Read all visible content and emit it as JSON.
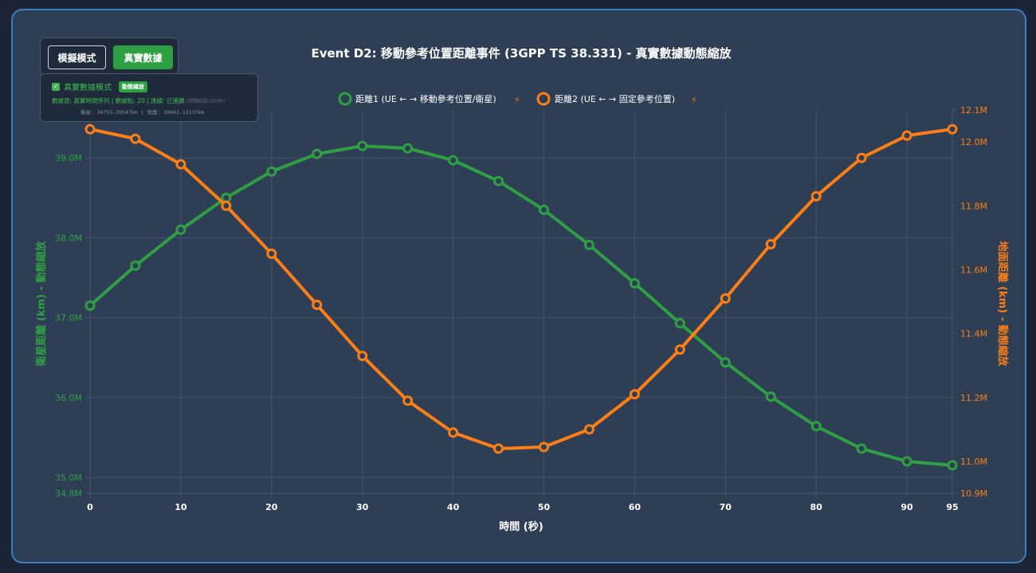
{
  "mode_buttons": {
    "simulation_label": "模擬模式",
    "real_label": "真實數據"
  },
  "info": {
    "checkbox_label": "真實數據模式",
    "badge": "動態縮放",
    "source_line": "數據源: 真實時間序列 | 數據點: 20 | 連線: 已連續",
    "source_note": "(時間範圍:100秒)",
    "range_line": "衛星: 34755-39547km | 地面: 10942-12137km"
  },
  "chart_data": {
    "type": "line",
    "title": "Event D2: 移動參考位置距離事件 (3GPP TS 38.331) - 真實數據動態縮放",
    "xlabel": "時間 (秒)",
    "y_left_label": "衛星距離 (km) - 動態縮放",
    "y_right_label": "地面距離 (km) - 動態縮放",
    "x": [
      0,
      5,
      10,
      15,
      20,
      25,
      30,
      35,
      40,
      45,
      50,
      55,
      60,
      65,
      70,
      75,
      80,
      85,
      90,
      95
    ],
    "xlim": [
      0,
      95
    ],
    "x_ticks": [
      0,
      10,
      20,
      30,
      40,
      50,
      60,
      70,
      80,
      90,
      95
    ],
    "y_left_lim": [
      34.8,
      39.6
    ],
    "y_left_ticks": [
      {
        "v": 34.8,
        "label": "34.8M"
      },
      {
        "v": 35.0,
        "label": "35.0M"
      },
      {
        "v": 36.0,
        "label": "36.0M"
      },
      {
        "v": 37.0,
        "label": "37.0M"
      },
      {
        "v": 38.0,
        "label": "38.0M"
      },
      {
        "v": 39.0,
        "label": "39.0M"
      }
    ],
    "y_right_lim": [
      10.9,
      12.1
    ],
    "y_right_ticks": [
      {
        "v": 10.9,
        "label": "10.9M"
      },
      {
        "v": 11.0,
        "label": "11.0M"
      },
      {
        "v": 11.2,
        "label": "11.2M"
      },
      {
        "v": 11.4,
        "label": "11.4M"
      },
      {
        "v": 11.6,
        "label": "11.6M"
      },
      {
        "v": 11.8,
        "label": "11.8M"
      },
      {
        "v": 12.0,
        "label": "12.0M"
      },
      {
        "v": 12.1,
        "label": "12.1M"
      }
    ],
    "series": [
      {
        "name": "距離1 (UE ← → 移動參考位置/衛星)",
        "axis": "left",
        "color": "#2ea043",
        "values": [
          37.15,
          37.65,
          38.1,
          38.5,
          38.83,
          39.05,
          39.15,
          39.12,
          38.97,
          38.71,
          38.35,
          37.91,
          37.43,
          36.93,
          36.44,
          36.01,
          35.64,
          35.36,
          35.2,
          35.15
        ]
      },
      {
        "name": "距離2 (UE ← → 固定參考位置)",
        "axis": "right",
        "color": "#fd7e14",
        "values": [
          12.04,
          12.01,
          11.93,
          11.8,
          11.65,
          11.49,
          11.33,
          11.19,
          11.09,
          11.04,
          11.045,
          11.1,
          11.21,
          11.35,
          11.51,
          11.68,
          11.83,
          11.95,
          12.02,
          12.04
        ]
      }
    ],
    "legend_position": "top",
    "legend_icon": "lightning-icon",
    "grid": true,
    "colors": {
      "grid": "#43556b",
      "tick_x": "#ffffff",
      "title": "#ffffff"
    }
  }
}
